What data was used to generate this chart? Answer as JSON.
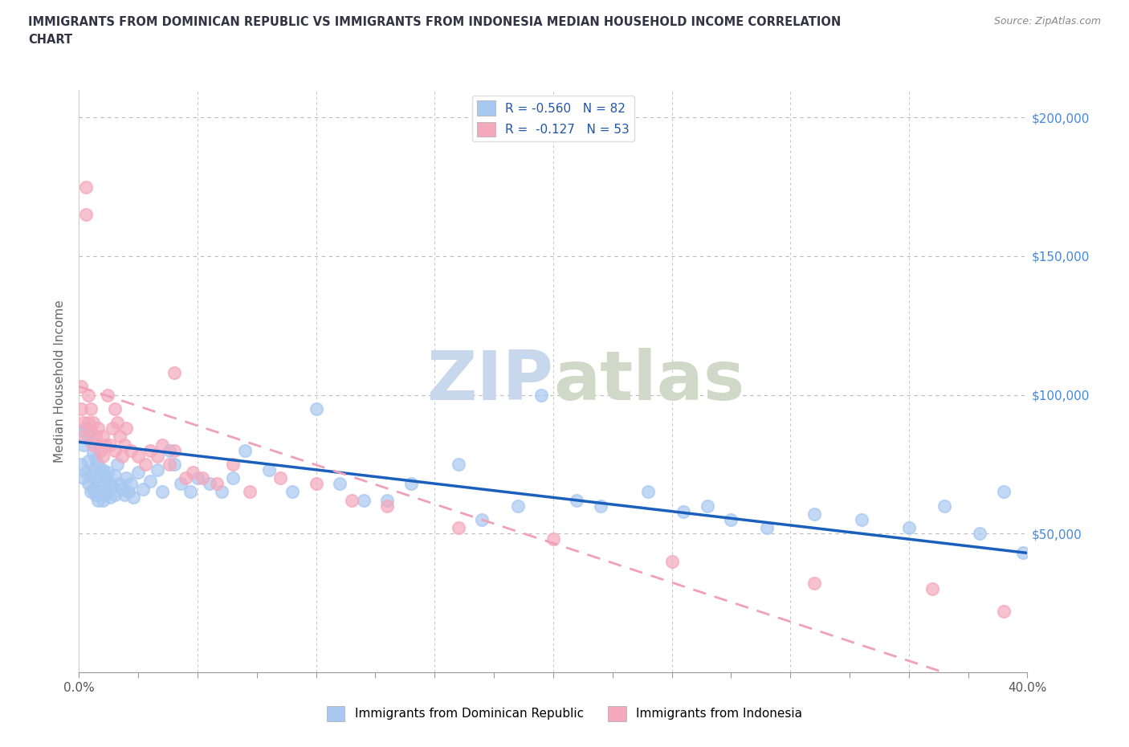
{
  "title_line1": "IMMIGRANTS FROM DOMINICAN REPUBLIC VS IMMIGRANTS FROM INDONESIA MEDIAN HOUSEHOLD INCOME CORRELATION",
  "title_line2": "CHART",
  "source": "Source: ZipAtlas.com",
  "ylabel": "Median Household Income",
  "xlim": [
    0.0,
    0.4
  ],
  "ylim": [
    0,
    210000
  ],
  "blue_color": "#A8C8F0",
  "pink_color": "#F4A8BC",
  "blue_line_color": "#1A5FBB",
  "pink_line_color": "#E8607A",
  "pink_dash_color": "#F0A0B8",
  "grid_color": "#CCCCCC",
  "right_tick_color": "#4488DD",
  "legend_r_blue_label": "R = -0.560",
  "legend_n_blue_label": "N = 82",
  "legend_r_pink_label": "R =  -0.127",
  "legend_n_pink_label": "N = 53",
  "blue_x": [
    0.001,
    0.001,
    0.002,
    0.002,
    0.003,
    0.003,
    0.004,
    0.004,
    0.004,
    0.005,
    0.005,
    0.005,
    0.006,
    0.006,
    0.006,
    0.007,
    0.007,
    0.007,
    0.008,
    0.008,
    0.008,
    0.009,
    0.009,
    0.01,
    0.01,
    0.01,
    0.011,
    0.011,
    0.012,
    0.012,
    0.013,
    0.013,
    0.014,
    0.015,
    0.015,
    0.016,
    0.017,
    0.018,
    0.019,
    0.02,
    0.021,
    0.022,
    0.023,
    0.025,
    0.027,
    0.03,
    0.033,
    0.035,
    0.038,
    0.04,
    0.043,
    0.047,
    0.05,
    0.055,
    0.06,
    0.065,
    0.07,
    0.08,
    0.09,
    0.1,
    0.11,
    0.12,
    0.13,
    0.14,
    0.16,
    0.17,
    0.185,
    0.195,
    0.21,
    0.22,
    0.24,
    0.255,
    0.265,
    0.275,
    0.29,
    0.31,
    0.33,
    0.35,
    0.365,
    0.38,
    0.39,
    0.398
  ],
  "blue_y": [
    87000,
    75000,
    82000,
    70000,
    88000,
    72000,
    85000,
    76000,
    68000,
    83000,
    71000,
    65000,
    79000,
    73000,
    66000,
    77000,
    70000,
    64000,
    75000,
    69000,
    62000,
    72000,
    65000,
    73000,
    68000,
    62000,
    70000,
    64000,
    72000,
    65000,
    68000,
    63000,
    67000,
    71000,
    64000,
    75000,
    68000,
    66000,
    64000,
    70000,
    65000,
    68000,
    63000,
    72000,
    66000,
    69000,
    73000,
    65000,
    80000,
    75000,
    68000,
    65000,
    70000,
    68000,
    65000,
    70000,
    80000,
    73000,
    65000,
    95000,
    68000,
    62000,
    62000,
    68000,
    75000,
    55000,
    60000,
    100000,
    62000,
    60000,
    65000,
    58000,
    60000,
    55000,
    52000,
    57000,
    55000,
    52000,
    60000,
    50000,
    65000,
    43000
  ],
  "pink_x": [
    0.001,
    0.001,
    0.002,
    0.002,
    0.003,
    0.003,
    0.004,
    0.004,
    0.005,
    0.005,
    0.006,
    0.006,
    0.007,
    0.008,
    0.009,
    0.01,
    0.01,
    0.011,
    0.012,
    0.013,
    0.014,
    0.015,
    0.015,
    0.016,
    0.017,
    0.018,
    0.019,
    0.02,
    0.022,
    0.025,
    0.028,
    0.03,
    0.033,
    0.035,
    0.038,
    0.04,
    0.04,
    0.045,
    0.048,
    0.052,
    0.058,
    0.065,
    0.072,
    0.085,
    0.1,
    0.115,
    0.13,
    0.16,
    0.2,
    0.25,
    0.31,
    0.36,
    0.39
  ],
  "pink_y": [
    103000,
    95000,
    90000,
    85000,
    175000,
    165000,
    100000,
    90000,
    95000,
    87000,
    90000,
    82000,
    85000,
    88000,
    80000,
    85000,
    78000,
    82000,
    100000,
    82000,
    88000,
    80000,
    95000,
    90000,
    85000,
    78000,
    82000,
    88000,
    80000,
    78000,
    75000,
    80000,
    78000,
    82000,
    75000,
    80000,
    108000,
    70000,
    72000,
    70000,
    68000,
    75000,
    65000,
    70000,
    68000,
    62000,
    60000,
    52000,
    48000,
    40000,
    32000,
    30000,
    22000
  ]
}
